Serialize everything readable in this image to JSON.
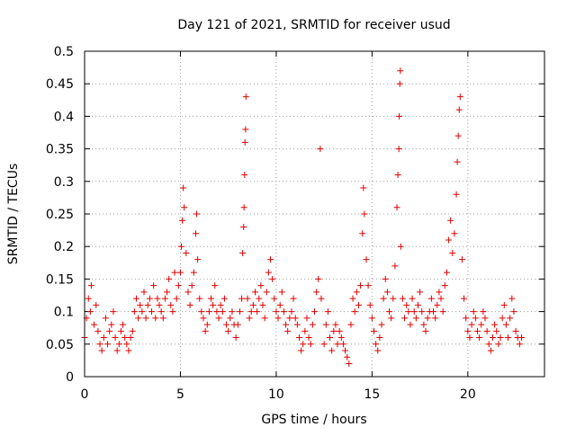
{
  "chart_data": {
    "type": "scatter",
    "title": "Day 121 of 2021, SRMTID for receiver usud",
    "xlabel": "GPS time / hours",
    "ylabel": "SRMTID / TECUs",
    "xlim": [
      0,
      24
    ],
    "ylim": [
      0,
      0.5
    ],
    "x_ticks": [
      0,
      5,
      10,
      15,
      20
    ],
    "x_tick_labels": [
      "0",
      "5",
      "10",
      "15",
      "20"
    ],
    "y_ticks": [
      0,
      0.05,
      0.1,
      0.15,
      0.2,
      0.25,
      0.3,
      0.35,
      0.4,
      0.45,
      0.5
    ],
    "y_tick_labels": [
      "0",
      "0.05",
      "0.1",
      "0.15",
      "0.2",
      "0.25",
      "0.3",
      "0.35",
      "0.4",
      "0.45",
      "0.5"
    ],
    "grid": true,
    "marker": "plus",
    "color": "#e00000",
    "series": [
      {
        "name": "SRMTID",
        "points": [
          [
            0.0,
            0.06
          ],
          [
            0.1,
            0.09
          ],
          [
            0.2,
            0.12
          ],
          [
            0.3,
            0.1
          ],
          [
            0.35,
            0.14
          ],
          [
            0.5,
            0.08
          ],
          [
            0.6,
            0.11
          ],
          [
            0.7,
            0.07
          ],
          [
            0.8,
            0.05
          ],
          [
            0.9,
            0.04
          ],
          [
            1.0,
            0.06
          ],
          [
            1.1,
            0.09
          ],
          [
            1.2,
            0.05
          ],
          [
            1.3,
            0.07
          ],
          [
            1.4,
            0.08
          ],
          [
            1.5,
            0.1
          ],
          [
            1.6,
            0.06
          ],
          [
            1.7,
            0.04
          ],
          [
            1.8,
            0.05
          ],
          [
            1.9,
            0.07
          ],
          [
            2.0,
            0.08
          ],
          [
            2.1,
            0.06
          ],
          [
            2.2,
            0.05
          ],
          [
            2.3,
            0.04
          ],
          [
            2.4,
            0.06
          ],
          [
            2.5,
            0.07
          ],
          [
            2.6,
            0.1
          ],
          [
            2.7,
            0.12
          ],
          [
            2.8,
            0.09
          ],
          [
            2.9,
            0.11
          ],
          [
            3.0,
            0.1
          ],
          [
            3.1,
            0.13
          ],
          [
            3.2,
            0.09
          ],
          [
            3.3,
            0.11
          ],
          [
            3.4,
            0.12
          ],
          [
            3.5,
            0.1
          ],
          [
            3.6,
            0.14
          ],
          [
            3.7,
            0.09
          ],
          [
            3.8,
            0.12
          ],
          [
            3.9,
            0.11
          ],
          [
            4.0,
            0.1
          ],
          [
            4.1,
            0.09
          ],
          [
            4.2,
            0.12
          ],
          [
            4.3,
            0.13
          ],
          [
            4.4,
            0.15
          ],
          [
            4.5,
            0.11
          ],
          [
            4.6,
            0.1
          ],
          [
            4.7,
            0.16
          ],
          [
            4.8,
            0.12
          ],
          [
            4.9,
            0.14
          ],
          [
            5.0,
            0.16
          ],
          [
            5.05,
            0.2
          ],
          [
            5.1,
            0.24
          ],
          [
            5.15,
            0.29
          ],
          [
            5.2,
            0.26
          ],
          [
            5.3,
            0.19
          ],
          [
            5.4,
            0.13
          ],
          [
            5.5,
            0.11
          ],
          [
            5.6,
            0.14
          ],
          [
            5.7,
            0.16
          ],
          [
            5.8,
            0.22
          ],
          [
            5.85,
            0.25
          ],
          [
            5.9,
            0.18
          ],
          [
            6.0,
            0.12
          ],
          [
            6.1,
            0.1
          ],
          [
            6.2,
            0.09
          ],
          [
            6.3,
            0.07
          ],
          [
            6.4,
            0.08
          ],
          [
            6.5,
            0.1
          ],
          [
            6.6,
            0.12
          ],
          [
            6.7,
            0.11
          ],
          [
            6.8,
            0.14
          ],
          [
            6.9,
            0.1
          ],
          [
            7.0,
            0.09
          ],
          [
            7.1,
            0.11
          ],
          [
            7.2,
            0.1
          ],
          [
            7.3,
            0.12
          ],
          [
            7.4,
            0.08
          ],
          [
            7.5,
            0.07
          ],
          [
            7.6,
            0.09
          ],
          [
            7.7,
            0.1
          ],
          [
            7.8,
            0.08
          ],
          [
            7.9,
            0.06
          ],
          [
            8.0,
            0.08
          ],
          [
            8.1,
            0.1
          ],
          [
            8.2,
            0.12
          ],
          [
            8.25,
            0.19
          ],
          [
            8.3,
            0.23
          ],
          [
            8.32,
            0.26
          ],
          [
            8.35,
            0.31
          ],
          [
            8.37,
            0.36
          ],
          [
            8.4,
            0.38
          ],
          [
            8.42,
            0.43
          ],
          [
            8.5,
            0.12
          ],
          [
            8.6,
            0.09
          ],
          [
            8.7,
            0.1
          ],
          [
            8.8,
            0.11
          ],
          [
            8.9,
            0.13
          ],
          [
            9.0,
            0.1
          ],
          [
            9.1,
            0.12
          ],
          [
            9.2,
            0.14
          ],
          [
            9.3,
            0.11
          ],
          [
            9.4,
            0.09
          ],
          [
            9.5,
            0.13
          ],
          [
            9.6,
            0.16
          ],
          [
            9.7,
            0.18
          ],
          [
            9.8,
            0.15
          ],
          [
            9.9,
            0.12
          ],
          [
            10.0,
            0.1
          ],
          [
            10.1,
            0.09
          ],
          [
            10.2,
            0.11
          ],
          [
            10.3,
            0.13
          ],
          [
            10.4,
            0.1
          ],
          [
            10.5,
            0.08
          ],
          [
            10.6,
            0.07
          ],
          [
            10.7,
            0.09
          ],
          [
            10.8,
            0.1
          ],
          [
            10.9,
            0.12
          ],
          [
            11.0,
            0.09
          ],
          [
            11.1,
            0.08
          ],
          [
            11.2,
            0.06
          ],
          [
            11.3,
            0.04
          ],
          [
            11.4,
            0.05
          ],
          [
            11.5,
            0.07
          ],
          [
            11.6,
            0.09
          ],
          [
            11.7,
            0.06
          ],
          [
            11.8,
            0.05
          ],
          [
            11.9,
            0.08
          ],
          [
            12.0,
            0.1
          ],
          [
            12.1,
            0.13
          ],
          [
            12.2,
            0.15
          ],
          [
            12.3,
            0.35
          ],
          [
            12.35,
            0.12
          ],
          [
            12.5,
            0.05
          ],
          [
            12.6,
            0.08
          ],
          [
            12.7,
            0.1
          ],
          [
            12.8,
            0.06
          ],
          [
            12.9,
            0.04
          ],
          [
            13.0,
            0.07
          ],
          [
            13.1,
            0.08
          ],
          [
            13.2,
            0.05
          ],
          [
            13.3,
            0.07
          ],
          [
            13.4,
            0.06
          ],
          [
            13.5,
            0.05
          ],
          [
            13.6,
            0.04
          ],
          [
            13.7,
            0.03
          ],
          [
            13.8,
            0.02
          ],
          [
            13.9,
            0.08
          ],
          [
            14.0,
            0.12
          ],
          [
            14.1,
            0.1
          ],
          [
            14.2,
            0.13
          ],
          [
            14.3,
            0.11
          ],
          [
            14.4,
            0.14
          ],
          [
            14.5,
            0.22
          ],
          [
            14.55,
            0.29
          ],
          [
            14.6,
            0.25
          ],
          [
            14.7,
            0.18
          ],
          [
            14.8,
            0.14
          ],
          [
            14.9,
            0.11
          ],
          [
            15.0,
            0.09
          ],
          [
            15.1,
            0.07
          ],
          [
            15.2,
            0.05
          ],
          [
            15.3,
            0.04
          ],
          [
            15.4,
            0.06
          ],
          [
            15.5,
            0.08
          ],
          [
            15.6,
            0.12
          ],
          [
            15.7,
            0.15
          ],
          [
            15.8,
            0.13
          ],
          [
            15.9,
            0.1
          ],
          [
            16.0,
            0.09
          ],
          [
            16.1,
            0.12
          ],
          [
            16.2,
            0.17
          ],
          [
            16.3,
            0.26
          ],
          [
            16.35,
            0.31
          ],
          [
            16.4,
            0.35
          ],
          [
            16.42,
            0.4
          ],
          [
            16.45,
            0.45
          ],
          [
            16.48,
            0.47
          ],
          [
            16.5,
            0.2
          ],
          [
            16.6,
            0.12
          ],
          [
            16.7,
            0.09
          ],
          [
            16.8,
            0.11
          ],
          [
            16.9,
            0.1
          ],
          [
            17.0,
            0.08
          ],
          [
            17.1,
            0.12
          ],
          [
            17.2,
            0.1
          ],
          [
            17.3,
            0.09
          ],
          [
            17.4,
            0.11
          ],
          [
            17.5,
            0.13
          ],
          [
            17.6,
            0.1
          ],
          [
            17.7,
            0.08
          ],
          [
            17.8,
            0.07
          ],
          [
            17.9,
            0.09
          ],
          [
            18.0,
            0.1
          ],
          [
            18.1,
            0.12
          ],
          [
            18.2,
            0.1
          ],
          [
            18.3,
            0.09
          ],
          [
            18.4,
            0.11
          ],
          [
            18.5,
            0.13
          ],
          [
            18.6,
            0.12
          ],
          [
            18.7,
            0.1
          ],
          [
            18.8,
            0.14
          ],
          [
            18.9,
            0.16
          ],
          [
            19.0,
            0.21
          ],
          [
            19.1,
            0.24
          ],
          [
            19.2,
            0.19
          ],
          [
            19.3,
            0.22
          ],
          [
            19.4,
            0.28
          ],
          [
            19.45,
            0.33
          ],
          [
            19.5,
            0.37
          ],
          [
            19.55,
            0.41
          ],
          [
            19.6,
            0.43
          ],
          [
            19.7,
            0.18
          ],
          [
            19.8,
            0.12
          ],
          [
            19.9,
            0.09
          ],
          [
            20.0,
            0.07
          ],
          [
            20.1,
            0.06
          ],
          [
            20.2,
            0.08
          ],
          [
            20.3,
            0.1
          ],
          [
            20.4,
            0.09
          ],
          [
            20.5,
            0.07
          ],
          [
            20.6,
            0.06
          ],
          [
            20.7,
            0.08
          ],
          [
            20.8,
            0.1
          ],
          [
            20.9,
            0.09
          ],
          [
            21.0,
            0.07
          ],
          [
            21.1,
            0.05
          ],
          [
            21.2,
            0.04
          ],
          [
            21.3,
            0.06
          ],
          [
            21.4,
            0.08
          ],
          [
            21.5,
            0.07
          ],
          [
            21.6,
            0.05
          ],
          [
            21.7,
            0.06
          ],
          [
            21.8,
            0.09
          ],
          [
            21.9,
            0.11
          ],
          [
            22.0,
            0.08
          ],
          [
            22.1,
            0.06
          ],
          [
            22.2,
            0.09
          ],
          [
            22.3,
            0.12
          ],
          [
            22.4,
            0.1
          ],
          [
            22.5,
            0.07
          ],
          [
            22.6,
            0.06
          ],
          [
            22.7,
            0.05
          ],
          [
            22.8,
            0.06
          ]
        ]
      }
    ]
  }
}
